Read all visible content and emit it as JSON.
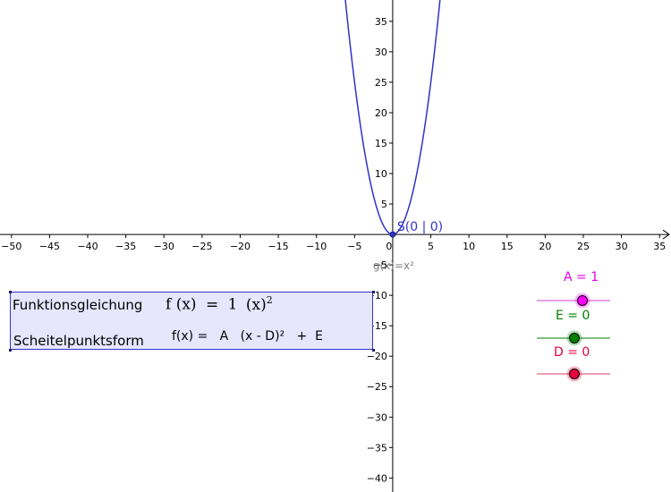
{
  "graph": {
    "function_label": "g(x)=x²",
    "vertex_label": "S(0 | 0)",
    "vertex": [
      0,
      0
    ],
    "function_coefficient": 1,
    "x_axis": {
      "range": [
        -51.5,
        36.5
      ],
      "ticks": [
        -50,
        -45,
        -40,
        -35,
        -30,
        -25,
        -20,
        -15,
        -10,
        -5,
        0,
        5,
        10,
        15,
        20,
        25,
        30,
        35
      ]
    },
    "y_axis": {
      "range": [
        -42.3,
        38.5
      ],
      "ticks": [
        35,
        30,
        25,
        20,
        15,
        10,
        5,
        -5,
        -10,
        -15,
        -20,
        -25,
        -30,
        -35,
        -40
      ]
    },
    "curve_color": "#3232c8",
    "point_color": "#3232c8"
  },
  "info_box": {
    "row1_label": "Funktionsgleichung",
    "row1_formula_prefix": "f (x)",
    "row1_formula_eq": "=",
    "row1_formula_coef": "1",
    "row1_formula_term": "(x)",
    "row1_formula_exp": "2",
    "row2_label": "Scheitelpunktsform",
    "row2_formula": "f(x) =   A   (x - D)²   +  E"
  },
  "sliders": [
    {
      "label": "A = 1",
      "value": 1,
      "color": "#e600e6",
      "track_color": "#e6a0e6",
      "point_fill": "#ff00ff"
    },
    {
      "label": "E = 0",
      "value": 0,
      "color": "#008000",
      "track_color": "#80c080",
      "point_fill": "#008000"
    },
    {
      "label": "D = 0",
      "value": 0,
      "color": "#e6003c",
      "track_color": "#f0a0b0",
      "point_fill": "#e6003c"
    }
  ]
}
